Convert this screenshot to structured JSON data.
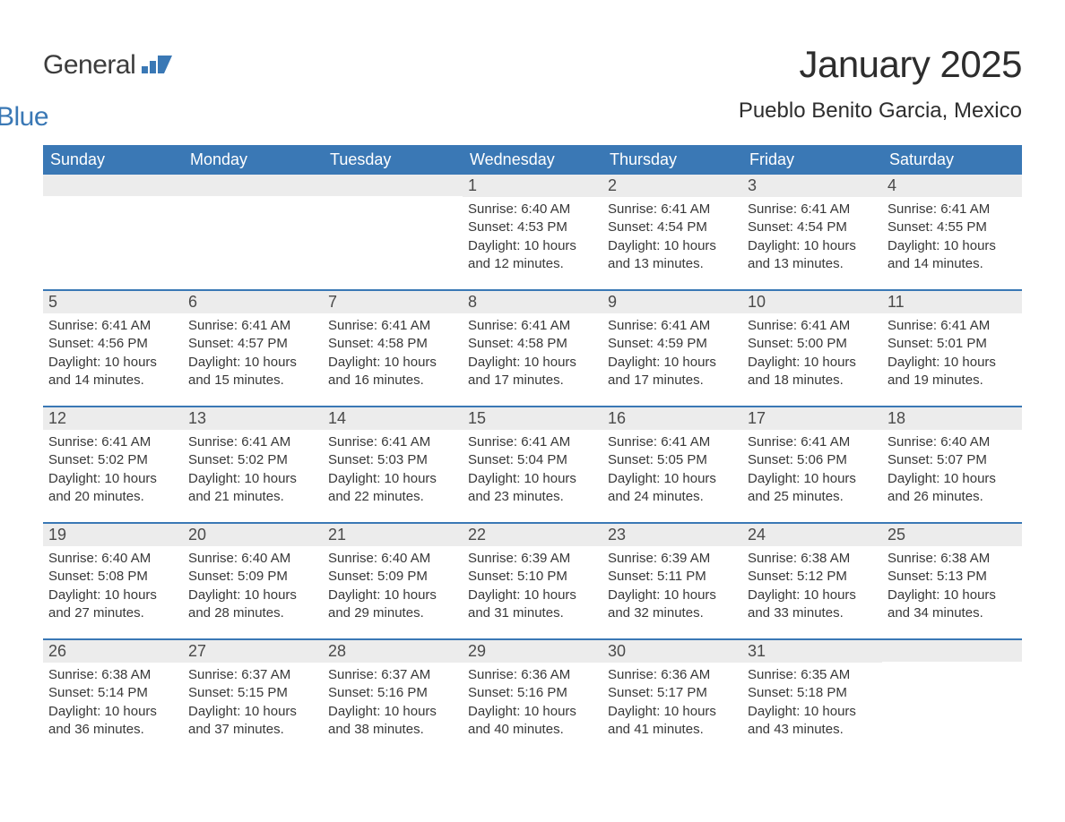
{
  "brand": {
    "part1": "General",
    "part2": "Blue",
    "accent_color": "#3a78b5",
    "text_color": "#3c3c3c"
  },
  "title": "January 2025",
  "location": "Pueblo Benito Garcia, Mexico",
  "colors": {
    "header_bg": "#3a78b5",
    "header_text": "#ffffff",
    "daynum_bg": "#ececec",
    "body_text": "#383838",
    "week_border": "#3a78b5",
    "page_bg": "#ffffff"
  },
  "day_headers": [
    "Sunday",
    "Monday",
    "Tuesday",
    "Wednesday",
    "Thursday",
    "Friday",
    "Saturday"
  ],
  "weeks": [
    [
      {
        "day": "",
        "sunrise": "",
        "sunset": "",
        "daylight": ""
      },
      {
        "day": "",
        "sunrise": "",
        "sunset": "",
        "daylight": ""
      },
      {
        "day": "",
        "sunrise": "",
        "sunset": "",
        "daylight": ""
      },
      {
        "day": "1",
        "sunrise": "Sunrise: 6:40 AM",
        "sunset": "Sunset: 4:53 PM",
        "daylight": "Daylight: 10 hours and 12 minutes."
      },
      {
        "day": "2",
        "sunrise": "Sunrise: 6:41 AM",
        "sunset": "Sunset: 4:54 PM",
        "daylight": "Daylight: 10 hours and 13 minutes."
      },
      {
        "day": "3",
        "sunrise": "Sunrise: 6:41 AM",
        "sunset": "Sunset: 4:54 PM",
        "daylight": "Daylight: 10 hours and 13 minutes."
      },
      {
        "day": "4",
        "sunrise": "Sunrise: 6:41 AM",
        "sunset": "Sunset: 4:55 PM",
        "daylight": "Daylight: 10 hours and 14 minutes."
      }
    ],
    [
      {
        "day": "5",
        "sunrise": "Sunrise: 6:41 AM",
        "sunset": "Sunset: 4:56 PM",
        "daylight": "Daylight: 10 hours and 14 minutes."
      },
      {
        "day": "6",
        "sunrise": "Sunrise: 6:41 AM",
        "sunset": "Sunset: 4:57 PM",
        "daylight": "Daylight: 10 hours and 15 minutes."
      },
      {
        "day": "7",
        "sunrise": "Sunrise: 6:41 AM",
        "sunset": "Sunset: 4:58 PM",
        "daylight": "Daylight: 10 hours and 16 minutes."
      },
      {
        "day": "8",
        "sunrise": "Sunrise: 6:41 AM",
        "sunset": "Sunset: 4:58 PM",
        "daylight": "Daylight: 10 hours and 17 minutes."
      },
      {
        "day": "9",
        "sunrise": "Sunrise: 6:41 AM",
        "sunset": "Sunset: 4:59 PM",
        "daylight": "Daylight: 10 hours and 17 minutes."
      },
      {
        "day": "10",
        "sunrise": "Sunrise: 6:41 AM",
        "sunset": "Sunset: 5:00 PM",
        "daylight": "Daylight: 10 hours and 18 minutes."
      },
      {
        "day": "11",
        "sunrise": "Sunrise: 6:41 AM",
        "sunset": "Sunset: 5:01 PM",
        "daylight": "Daylight: 10 hours and 19 minutes."
      }
    ],
    [
      {
        "day": "12",
        "sunrise": "Sunrise: 6:41 AM",
        "sunset": "Sunset: 5:02 PM",
        "daylight": "Daylight: 10 hours and 20 minutes."
      },
      {
        "day": "13",
        "sunrise": "Sunrise: 6:41 AM",
        "sunset": "Sunset: 5:02 PM",
        "daylight": "Daylight: 10 hours and 21 minutes."
      },
      {
        "day": "14",
        "sunrise": "Sunrise: 6:41 AM",
        "sunset": "Sunset: 5:03 PM",
        "daylight": "Daylight: 10 hours and 22 minutes."
      },
      {
        "day": "15",
        "sunrise": "Sunrise: 6:41 AM",
        "sunset": "Sunset: 5:04 PM",
        "daylight": "Daylight: 10 hours and 23 minutes."
      },
      {
        "day": "16",
        "sunrise": "Sunrise: 6:41 AM",
        "sunset": "Sunset: 5:05 PM",
        "daylight": "Daylight: 10 hours and 24 minutes."
      },
      {
        "day": "17",
        "sunrise": "Sunrise: 6:41 AM",
        "sunset": "Sunset: 5:06 PM",
        "daylight": "Daylight: 10 hours and 25 minutes."
      },
      {
        "day": "18",
        "sunrise": "Sunrise: 6:40 AM",
        "sunset": "Sunset: 5:07 PM",
        "daylight": "Daylight: 10 hours and 26 minutes."
      }
    ],
    [
      {
        "day": "19",
        "sunrise": "Sunrise: 6:40 AM",
        "sunset": "Sunset: 5:08 PM",
        "daylight": "Daylight: 10 hours and 27 minutes."
      },
      {
        "day": "20",
        "sunrise": "Sunrise: 6:40 AM",
        "sunset": "Sunset: 5:09 PM",
        "daylight": "Daylight: 10 hours and 28 minutes."
      },
      {
        "day": "21",
        "sunrise": "Sunrise: 6:40 AM",
        "sunset": "Sunset: 5:09 PM",
        "daylight": "Daylight: 10 hours and 29 minutes."
      },
      {
        "day": "22",
        "sunrise": "Sunrise: 6:39 AM",
        "sunset": "Sunset: 5:10 PM",
        "daylight": "Daylight: 10 hours and 31 minutes."
      },
      {
        "day": "23",
        "sunrise": "Sunrise: 6:39 AM",
        "sunset": "Sunset: 5:11 PM",
        "daylight": "Daylight: 10 hours and 32 minutes."
      },
      {
        "day": "24",
        "sunrise": "Sunrise: 6:38 AM",
        "sunset": "Sunset: 5:12 PM",
        "daylight": "Daylight: 10 hours and 33 minutes."
      },
      {
        "day": "25",
        "sunrise": "Sunrise: 6:38 AM",
        "sunset": "Sunset: 5:13 PM",
        "daylight": "Daylight: 10 hours and 34 minutes."
      }
    ],
    [
      {
        "day": "26",
        "sunrise": "Sunrise: 6:38 AM",
        "sunset": "Sunset: 5:14 PM",
        "daylight": "Daylight: 10 hours and 36 minutes."
      },
      {
        "day": "27",
        "sunrise": "Sunrise: 6:37 AM",
        "sunset": "Sunset: 5:15 PM",
        "daylight": "Daylight: 10 hours and 37 minutes."
      },
      {
        "day": "28",
        "sunrise": "Sunrise: 6:37 AM",
        "sunset": "Sunset: 5:16 PM",
        "daylight": "Daylight: 10 hours and 38 minutes."
      },
      {
        "day": "29",
        "sunrise": "Sunrise: 6:36 AM",
        "sunset": "Sunset: 5:16 PM",
        "daylight": "Daylight: 10 hours and 40 minutes."
      },
      {
        "day": "30",
        "sunrise": "Sunrise: 6:36 AM",
        "sunset": "Sunset: 5:17 PM",
        "daylight": "Daylight: 10 hours and 41 minutes."
      },
      {
        "day": "31",
        "sunrise": "Sunrise: 6:35 AM",
        "sunset": "Sunset: 5:18 PM",
        "daylight": "Daylight: 10 hours and 43 minutes."
      },
      {
        "day": "",
        "sunrise": "",
        "sunset": "",
        "daylight": ""
      }
    ]
  ]
}
